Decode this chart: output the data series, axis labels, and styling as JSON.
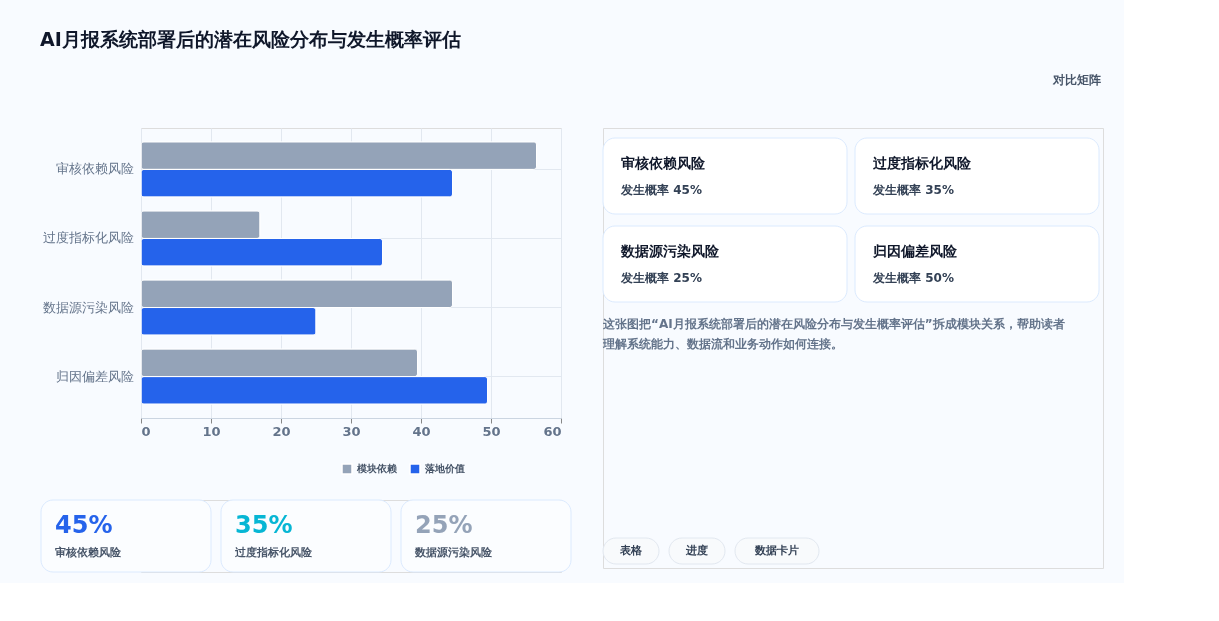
{
  "chart_data": {
    "type": "bar",
    "orientation": "horizontal",
    "title": "AI月报系统部署后的潜在风险分布与发生概率评估",
    "categories": [
      "审核依赖风险",
      "过度指标化风险",
      "数据源污染风险",
      "归因偏差风险"
    ],
    "series": [
      {
        "name": "模块依赖",
        "color": "#94a3b8",
        "values": [
          56.5,
          17,
          44.5,
          39.5
        ]
      },
      {
        "name": "落地价值",
        "color": "#2563eb",
        "values": [
          44.5,
          34.5,
          25,
          49.5
        ]
      }
    ],
    "xlim": [
      0,
      60
    ],
    "xticks": [
      0,
      10,
      20,
      30,
      40,
      50,
      60
    ],
    "grid": true,
    "legend": "bottom",
    "annotations": [
      "对比矩阵",
      "审核依赖风险",
      "发生概率 45%",
      "过度指标化风险",
      "发生概率 35%",
      "数据源污染风险",
      "发生概率 25%",
      "归因偏差风险",
      "发生概率 50%",
      "这张图把“AI月报系统部署后的潜在风险分布与发生概率评估”拆成模块关系，帮助读者理解系统能力、数据流和业务动作如何连接。",
      "45%",
      "审核依赖风险",
      "35%",
      "过度指标化风险",
      "25%",
      "数据源污染风险",
      "表格",
      "进度",
      "数据卡片"
    ]
  }
}
